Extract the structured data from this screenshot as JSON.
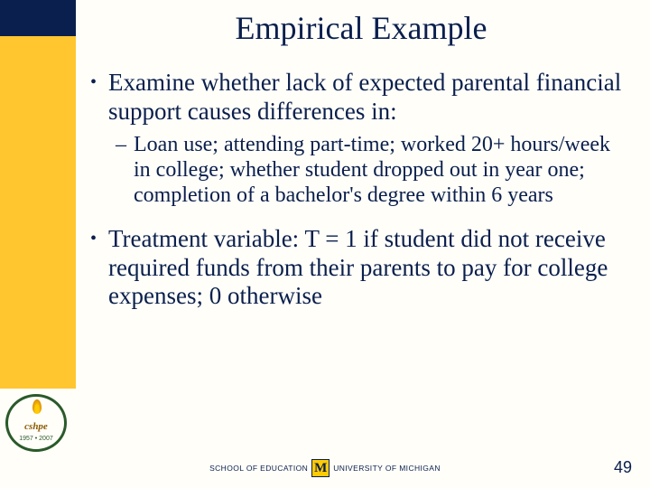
{
  "colors": {
    "navy": "#0a1f4d",
    "maize": "#ffc62f",
    "background": "#fffef9"
  },
  "slide": {
    "title": "Empirical Example",
    "bullets": [
      {
        "level": 1,
        "text": "Examine whether lack of expected parental financial support causes differences in:"
      },
      {
        "level": 2,
        "text": "Loan use; attending part-time; worked 20+ hours/week in college; whether student dropped out in year one; completion of a bachelor's degree within 6 years"
      },
      {
        "level": 1,
        "text": "Treatment variable: T = 1 if student did not receive required funds from their parents to pay for college expenses; 0 otherwise"
      }
    ]
  },
  "footer": {
    "left_text": "SCHOOL OF EDUCATION",
    "right_text": "UNIVERSITY OF MICHIGAN",
    "page_number": "49"
  },
  "sidebar_logo": {
    "name": "cshpe",
    "years": "1957 • 2007"
  }
}
